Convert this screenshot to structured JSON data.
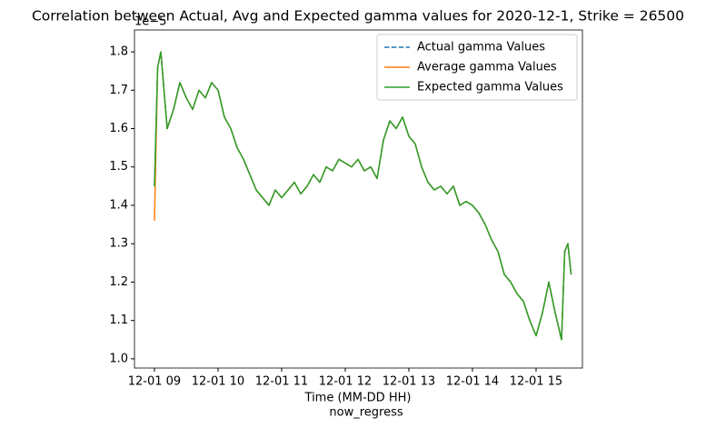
{
  "chart_data": {
    "type": "line",
    "title": "Correlation between Actual, Avg and Expected gamma values for 2020-12-1, Strike = 26500",
    "x_label_lines": [
      "Time (MM-DD HH)",
      "now_regress"
    ],
    "y_offset_label": "1e−5",
    "x": [
      9.0,
      9.05,
      9.1,
      9.15,
      9.2,
      9.3,
      9.4,
      9.5,
      9.6,
      9.7,
      9.8,
      9.9,
      10.0,
      10.1,
      10.2,
      10.3,
      10.4,
      10.5,
      10.6,
      10.7,
      10.8,
      10.9,
      11.0,
      11.1,
      11.2,
      11.3,
      11.4,
      11.5,
      11.6,
      11.7,
      11.8,
      11.9,
      12.0,
      12.1,
      12.2,
      12.3,
      12.4,
      12.5,
      12.6,
      12.7,
      12.8,
      12.9,
      13.0,
      13.1,
      13.2,
      13.3,
      13.4,
      13.5,
      13.6,
      13.7,
      13.8,
      13.9,
      14.0,
      14.1,
      14.2,
      14.3,
      14.4,
      14.5,
      14.6,
      14.7,
      14.8,
      14.9,
      15.0,
      15.1,
      15.2,
      15.3,
      15.4,
      15.45,
      15.5,
      15.55
    ],
    "series": [
      {
        "name": "Actual gamma Values",
        "color": "#1f77b4",
        "dashed": true,
        "values": [
          1.45,
          1.76,
          1.8,
          1.7,
          1.6,
          1.65,
          1.72,
          1.68,
          1.65,
          1.7,
          1.68,
          1.72,
          1.7,
          1.63,
          1.6,
          1.55,
          1.52,
          1.48,
          1.44,
          1.42,
          1.4,
          1.44,
          1.42,
          1.44,
          1.46,
          1.43,
          1.45,
          1.48,
          1.46,
          1.5,
          1.49,
          1.52,
          1.51,
          1.5,
          1.52,
          1.49,
          1.5,
          1.47,
          1.57,
          1.62,
          1.6,
          1.63,
          1.58,
          1.56,
          1.5,
          1.46,
          1.44,
          1.45,
          1.43,
          1.45,
          1.4,
          1.41,
          1.4,
          1.38,
          1.35,
          1.31,
          1.28,
          1.22,
          1.2,
          1.17,
          1.15,
          1.1,
          1.06,
          1.12,
          1.2,
          1.12,
          1.05,
          1.28,
          1.3,
          1.22
        ]
      },
      {
        "name": "Average gamma Values",
        "color": "#ff7f0e",
        "dashed": false,
        "values": [
          1.36,
          1.76,
          1.8,
          1.7,
          1.6,
          1.65,
          1.72,
          1.68,
          1.65,
          1.7,
          1.68,
          1.72,
          1.7,
          1.63,
          1.6,
          1.55,
          1.52,
          1.48,
          1.44,
          1.42,
          1.4,
          1.44,
          1.42,
          1.44,
          1.46,
          1.43,
          1.45,
          1.48,
          1.46,
          1.5,
          1.49,
          1.52,
          1.51,
          1.5,
          1.52,
          1.49,
          1.5,
          1.47,
          1.57,
          1.62,
          1.6,
          1.63,
          1.58,
          1.56,
          1.5,
          1.46,
          1.44,
          1.45,
          1.43,
          1.45,
          1.4,
          1.41,
          1.4,
          1.38,
          1.35,
          1.31,
          1.28,
          1.22,
          1.2,
          1.17,
          1.15,
          1.1,
          1.06,
          1.12,
          1.2,
          1.12,
          1.05,
          1.28,
          1.3,
          1.22
        ]
      },
      {
        "name": "Expected gamma Values",
        "color": "#2ca02c",
        "dashed": false,
        "values": [
          1.45,
          1.76,
          1.8,
          1.7,
          1.6,
          1.65,
          1.72,
          1.68,
          1.65,
          1.7,
          1.68,
          1.72,
          1.7,
          1.63,
          1.6,
          1.55,
          1.52,
          1.48,
          1.44,
          1.42,
          1.4,
          1.44,
          1.42,
          1.44,
          1.46,
          1.43,
          1.45,
          1.48,
          1.46,
          1.5,
          1.49,
          1.52,
          1.51,
          1.5,
          1.52,
          1.49,
          1.5,
          1.47,
          1.57,
          1.62,
          1.6,
          1.63,
          1.58,
          1.56,
          1.5,
          1.46,
          1.44,
          1.45,
          1.43,
          1.45,
          1.4,
          1.41,
          1.4,
          1.38,
          1.35,
          1.31,
          1.28,
          1.22,
          1.2,
          1.17,
          1.15,
          1.1,
          1.06,
          1.12,
          1.2,
          1.12,
          1.05,
          1.28,
          1.3,
          1.22
        ]
      }
    ],
    "xlim": [
      8.686,
      15.729
    ],
    "xticks": [
      {
        "value": 9,
        "label": "12-01 09"
      },
      {
        "value": 10,
        "label": "12-01 10"
      },
      {
        "value": 11,
        "label": "12-01 11"
      },
      {
        "value": 12,
        "label": "12-01 12"
      },
      {
        "value": 13,
        "label": "12-01 13"
      },
      {
        "value": 14,
        "label": "12-01 14"
      },
      {
        "value": 15,
        "label": "12-01 15"
      }
    ],
    "ylim": [
      0.976,
      1.857
    ],
    "yticks": [
      {
        "value": 1.0,
        "label": "1.0"
      },
      1.1,
      1.2,
      1.3,
      1.4,
      1.5,
      1.6,
      1.7,
      1.8
    ],
    "legend": "upper-right"
  }
}
